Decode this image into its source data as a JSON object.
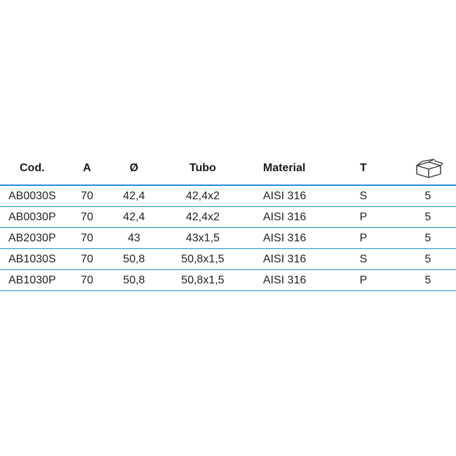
{
  "table": {
    "headers": {
      "cod": "Cod.",
      "a": "A",
      "diameter": "Ø",
      "tubo": "Tubo",
      "material": "Material",
      "t": "T",
      "box_icon": "box-icon"
    },
    "rows": [
      {
        "cod": "AB0030S",
        "a": "70",
        "diameter": "42,4",
        "tubo": "42,4x2",
        "material": "AISI 316",
        "t": "S",
        "box": "5"
      },
      {
        "cod": "AB0030P",
        "a": "70",
        "diameter": "42,4",
        "tubo": "42,4x2",
        "material": "AISI 316",
        "t": "P",
        "box": "5"
      },
      {
        "cod": "AB2030P",
        "a": "70",
        "diameter": "43",
        "tubo": "43x1,5",
        "material": "AISI 316",
        "t": "P",
        "box": "5"
      },
      {
        "cod": "AB1030S",
        "a": "70",
        "diameter": "50,8",
        "tubo": "50,8x1,5",
        "material": "AISI 316",
        "t": "S",
        "box": "5"
      },
      {
        "cod": "AB1030P",
        "a": "70",
        "diameter": "50,8",
        "tubo": "50,8x1,5",
        "material": "AISI 316",
        "t": "P",
        "box": "5"
      }
    ],
    "rule_color": "#1e8fd6"
  }
}
